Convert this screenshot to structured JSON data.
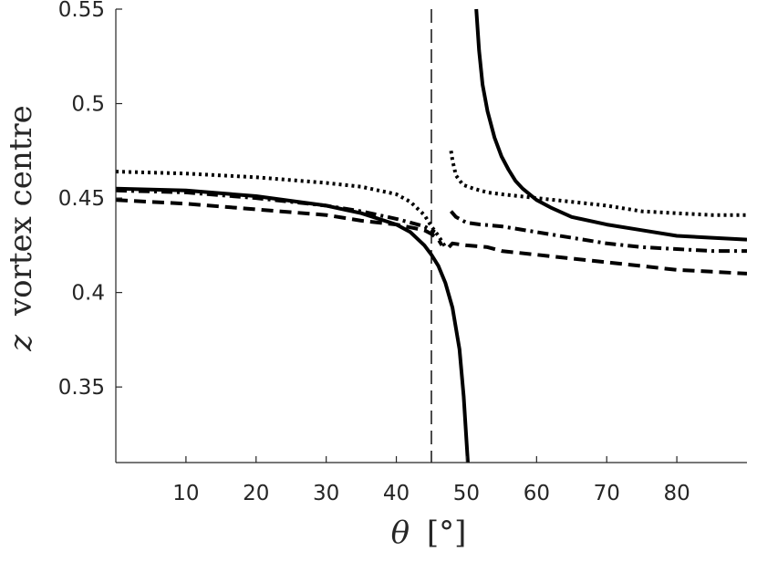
{
  "chart_data": {
    "type": "line",
    "title": "",
    "xlabel_var": "θ",
    "xlabel_unit": "[°]",
    "ylabel_var": "z",
    "ylabel_text": "vortex centre",
    "xlim": [
      0,
      90
    ],
    "ylim": [
      0.31,
      0.55
    ],
    "xticks": [
      10,
      20,
      30,
      40,
      50,
      60,
      70,
      80
    ],
    "xtick_labels": [
      "10",
      "20",
      "30",
      "40",
      "50",
      "60",
      "70",
      "80"
    ],
    "yticks": [
      0.35,
      0.4,
      0.45,
      0.5,
      0.55
    ],
    "ytick_labels": [
      "0.35",
      "0.4",
      "0.45",
      "0.5",
      "0.55"
    ],
    "grid": false,
    "reference_line": {
      "x": 45,
      "style": "dashed"
    },
    "series": [
      {
        "style": "solid",
        "segments": [
          {
            "x": [
              0,
              10,
              20,
              30,
              35,
              40,
              42,
              44,
              45,
              46,
              47,
              48,
              49,
              49.6,
              50,
              50.2
            ],
            "y": [
              0.455,
              0.454,
              0.451,
              0.446,
              0.442,
              0.436,
              0.432,
              0.425,
              0.42,
              0.414,
              0.405,
              0.392,
              0.37,
              0.345,
              0.322,
              0.31
            ]
          },
          {
            "x": [
              51.4,
              51.8,
              52.3,
              53,
              54,
              55,
              56,
              57,
              58,
              60,
              62,
              65,
              70,
              75,
              80,
              85,
              90
            ],
            "y": [
              0.55,
              0.528,
              0.51,
              0.496,
              0.482,
              0.472,
              0.465,
              0.459,
              0.455,
              0.449,
              0.445,
              0.44,
              0.436,
              0.433,
              0.43,
              0.429,
              0.428
            ]
          }
        ]
      },
      {
        "style": "dotted",
        "segments": [
          {
            "x": [
              0,
              10,
              20,
              30,
              35,
              40,
              42,
              44,
              45,
              46,
              47
            ],
            "y": [
              0.464,
              0.463,
              0.461,
              0.458,
              0.456,
              0.452,
              0.448,
              0.441,
              0.435,
              0.43,
              0.424
            ]
          },
          {
            "x": [
              47.8,
              48,
              48.5,
              49.5,
              51,
              53,
              55,
              60,
              65,
              70,
              75,
              80,
              85,
              90
            ],
            "y": [
              0.475,
              0.47,
              0.462,
              0.457,
              0.455,
              0.453,
              0.452,
              0.45,
              0.448,
              0.446,
              0.443,
              0.442,
              0.441,
              0.441
            ]
          }
        ]
      },
      {
        "style": "dashdot",
        "segments": [
          {
            "x": [
              0,
              10,
              20,
              30,
              35,
              40,
              44,
              45,
              45.5
            ],
            "y": [
              0.454,
              0.453,
              0.45,
              0.446,
              0.443,
              0.439,
              0.435,
              0.433,
              0.432
            ]
          },
          {
            "x": [
              47.8,
              48.5,
              50,
              52,
              55,
              60,
              65,
              70,
              75,
              80,
              85,
              90
            ],
            "y": [
              0.443,
              0.44,
              0.437,
              0.436,
              0.435,
              0.432,
              0.429,
              0.426,
              0.424,
              0.423,
              0.422,
              0.422
            ]
          }
        ]
      },
      {
        "style": "dashed",
        "segments": [
          {
            "x": [
              0,
              10,
              20,
              30,
              35,
              40,
              44,
              45,
              46,
              46.5
            ],
            "y": [
              0.449,
              0.447,
              0.444,
              0.441,
              0.438,
              0.436,
              0.433,
              0.431,
              0.428,
              0.425
            ]
          },
          {
            "x": [
              47.5,
              48,
              50,
              53,
              55,
              60,
              65,
              70,
              75,
              80,
              85,
              90
            ],
            "y": [
              0.424,
              0.426,
              0.425,
              0.424,
              0.422,
              0.42,
              0.418,
              0.416,
              0.414,
              0.412,
              0.411,
              0.41
            ]
          }
        ]
      }
    ]
  }
}
